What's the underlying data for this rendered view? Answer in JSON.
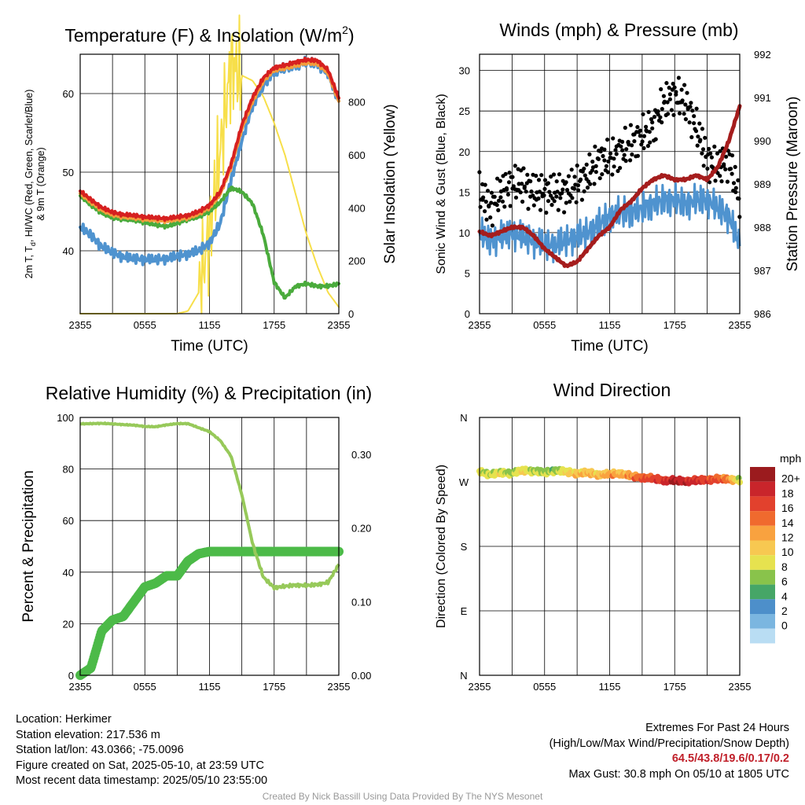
{
  "colors": {
    "air_temp": "#d62020",
    "dewpoint": "#4aab3c",
    "heat_index": "#d62020",
    "temp_9m": "#f39c3c",
    "windchill_line": "#4f93cf",
    "solar": "#f7df4a",
    "wind_speed": "#4f93cf",
    "gust": "#000000",
    "pressure": "#a51d1d",
    "rh": "#97c95a",
    "precip": "#4cba48"
  },
  "chart_data": [
    {
      "type": "line",
      "title": "Temperature (F) & Insolation (W/m",
      "title_sup": "2",
      "title_end": ")",
      "xlabel": "Time (UTC)",
      "ylabel_line1": "2m T, T",
      "ylabel_sub": "d",
      "ylabel_line1_end": ", HI/WC (Red, Green, Scarlet/Blue)",
      "ylabel_line2": "& 9m T (Orange)",
      "y2label": "Solar Insolation (Yellow)",
      "xticks": [
        "2355",
        "0555",
        "1155",
        "1755",
        "2355"
      ],
      "x": [
        0,
        1,
        2,
        3,
        4,
        5,
        6,
        7,
        8,
        9,
        10,
        11,
        12,
        13,
        14,
        15,
        16,
        17,
        18,
        19,
        20,
        21,
        22,
        23,
        24
      ],
      "ylim": [
        32,
        65
      ],
      "yticks": [
        40,
        50,
        60
      ],
      "y2lim": [
        0,
        980
      ],
      "y2ticks": [
        0,
        200,
        400,
        600,
        800
      ],
      "series": [
        {
          "name": "2m T (Red)",
          "axis": "y",
          "color": "#d62020",
          "values": [
            47.6,
            46.5,
            45.5,
            44.9,
            44.6,
            44.5,
            44.3,
            44.2,
            44.1,
            44.3,
            44.5,
            45.0,
            45.8,
            47.5,
            51.0,
            56.0,
            59.5,
            62.0,
            63.3,
            63.6,
            64.0,
            64.3,
            64.2,
            63.0,
            59.4
          ]
        },
        {
          "name": "9m T (Orange)",
          "axis": "y",
          "color": "#f39c3c",
          "values": [
            47.3,
            46.2,
            45.2,
            44.6,
            44.3,
            44.2,
            44.0,
            43.9,
            43.8,
            44.0,
            44.2,
            44.7,
            45.5,
            47.2,
            50.6,
            55.5,
            59.0,
            61.6,
            63.0,
            63.2,
            63.6,
            63.9,
            63.8,
            62.6,
            59.0
          ]
        },
        {
          "name": "Dewpoint (Green)",
          "axis": "y",
          "color": "#4aab3c",
          "values": [
            47.0,
            45.8,
            44.8,
            44.2,
            44.0,
            43.9,
            43.6,
            43.3,
            43.1,
            43.5,
            44.0,
            44.3,
            45.0,
            46.2,
            48.0,
            47.5,
            46.0,
            42.0,
            36.0,
            34.0,
            35.5,
            35.8,
            35.5,
            35.5,
            35.8
          ]
        },
        {
          "name": "HI/WC (Blue)",
          "axis": "y",
          "color": "#4f93cf",
          "values": [
            43.0,
            42.0,
            40.5,
            39.8,
            39.2,
            39.0,
            38.9,
            38.9,
            39.0,
            39.3,
            39.6,
            40.0,
            41.0,
            43.5,
            49.0,
            54.0,
            58.5,
            61.0,
            62.8,
            63.2,
            63.6,
            64.0,
            63.8,
            62.5,
            59.0
          ]
        },
        {
          "name": "Solar Insolation (Yellow)",
          "axis": "y2",
          "color": "#f7df4a",
          "values": [
            0,
            0,
            0,
            0,
            0,
            0,
            0,
            0,
            0,
            0,
            10,
            80,
            300,
            620,
            940,
            900,
            880,
            820,
            720,
            600,
            450,
            300,
            180,
            80,
            25
          ]
        }
      ]
    },
    {
      "type": "line",
      "title": "Winds (mph) & Pressure (mb)",
      "xlabel": "Time (UTC)",
      "ylabel": "Sonic Wind & Gust (Blue, Black)",
      "y2label": "Station Pressure (Maroon)",
      "xticks": [
        "2355",
        "0555",
        "1155",
        "1755",
        "2355"
      ],
      "x": [
        0,
        1,
        2,
        3,
        4,
        5,
        6,
        7,
        8,
        9,
        10,
        11,
        12,
        13,
        14,
        15,
        16,
        17,
        18,
        19,
        20,
        21,
        22,
        23,
        24
      ],
      "ylim": [
        0,
        32
      ],
      "yticks": [
        0,
        5,
        10,
        15,
        20,
        25,
        30
      ],
      "y2lim": [
        986,
        992
      ],
      "y2ticks": [
        986,
        987,
        988,
        989,
        990,
        991,
        992
      ],
      "series": [
        {
          "name": "Sonic Wind (Blue)",
          "axis": "y",
          "color": "#4f93cf",
          "values": [
            10,
            9,
            9.5,
            10,
            9.5,
            9,
            8.5,
            8.5,
            9,
            9.5,
            10,
            11,
            12,
            12.5,
            12.5,
            13,
            13.5,
            14,
            14,
            13.5,
            14,
            14,
            13,
            12,
            8.5
          ]
        },
        {
          "name": "Gust (Black)",
          "axis": "y",
          "color": "#000000",
          "values": [
            15,
            13,
            15,
            16,
            16,
            15,
            15,
            15,
            15,
            16,
            17,
            19,
            19,
            20,
            21,
            22,
            23,
            26,
            27,
            26,
            23,
            19,
            18,
            19,
            14
          ]
        },
        {
          "name": "Station Pressure (Maroon)",
          "axis": "y2",
          "color": "#a51d1d",
          "values": [
            987.9,
            987.8,
            987.9,
            988.0,
            988.0,
            987.8,
            987.5,
            987.3,
            987.1,
            987.2,
            987.5,
            987.8,
            988.0,
            988.4,
            988.6,
            988.9,
            989.1,
            989.2,
            989.1,
            989.1,
            989.2,
            989.1,
            989.4,
            990.0,
            990.8
          ]
        }
      ]
    },
    {
      "type": "line",
      "title": "Relative Humidity (%) & Precipitation (in)",
      "ylabel": "Percent & Precipitation",
      "xticks": [
        "2355",
        "0555",
        "1155",
        "1755",
        "2355"
      ],
      "x": [
        0,
        1,
        2,
        3,
        4,
        5,
        6,
        7,
        8,
        9,
        10,
        11,
        12,
        13,
        14,
        15,
        16,
        17,
        18,
        19,
        20,
        21,
        22,
        23,
        24
      ],
      "ylim": [
        0,
        100
      ],
      "yticks": [
        0,
        20,
        40,
        60,
        80,
        100
      ],
      "y2lim": [
        0,
        0.35
      ],
      "y2ticks": [
        "0.00",
        "0.10",
        "0.20",
        "0.30"
      ],
      "series": [
        {
          "name": "Relative Humidity (%)",
          "axis": "y",
          "color": "#97c95a",
          "values": [
            97.5,
            97.6,
            97.7,
            97.5,
            97.2,
            97.0,
            96.5,
            96.4,
            97.1,
            97.6,
            97.6,
            96.0,
            94.5,
            91.0,
            85.0,
            70.0,
            51.0,
            38.0,
            34.0,
            34.5,
            35.0,
            34.8,
            35.2,
            36.0,
            43.0
          ]
        },
        {
          "name": "Precipitation (in)",
          "axis": "y2",
          "color": "#4cba48",
          "values": [
            0.0,
            0.01,
            0.06,
            0.075,
            0.08,
            0.1,
            0.12,
            0.125,
            0.135,
            0.135,
            0.155,
            0.165,
            0.168,
            0.168,
            0.168,
            0.168,
            0.168,
            0.168,
            0.168,
            0.168,
            0.168,
            0.168,
            0.168,
            0.168,
            0.168
          ]
        }
      ]
    },
    {
      "type": "scatter",
      "title": "Wind Direction",
      "ylabel": "Direction (Colored By Speed)",
      "xticks": [
        "2355",
        "0555",
        "1155",
        "1755",
        "2355"
      ],
      "yticks": [
        "N",
        "E",
        "S",
        "W",
        "N"
      ],
      "ylim": [
        0,
        360
      ],
      "x": [
        0,
        1,
        2,
        3,
        4,
        5,
        6,
        7,
        8,
        9,
        10,
        11,
        12,
        13,
        14,
        15,
        16,
        17,
        18,
        19,
        20,
        21,
        22,
        23,
        24
      ],
      "direction": [
        285,
        280,
        283,
        282,
        286,
        285,
        283,
        286,
        284,
        282,
        283,
        280,
        281,
        282,
        278,
        276,
        275,
        272,
        272,
        271,
        272,
        273,
        274,
        274,
        272
      ],
      "speed": [
        9,
        8,
        9,
        7,
        10,
        8,
        8,
        7,
        10,
        11,
        12,
        11,
        13,
        12,
        14,
        16,
        17,
        18,
        20,
        19,
        18,
        17,
        16,
        14,
        8
      ],
      "colorbar": {
        "label": "mph",
        "ticks": [
          "20+",
          "18",
          "16",
          "14",
          "12",
          "10",
          "8",
          "6",
          "4",
          "2",
          "0"
        ],
        "colors": [
          "#9b1b1e",
          "#c9252b",
          "#e2412d",
          "#f06a2e",
          "#f9a23f",
          "#f7c851",
          "#e6e24f",
          "#89c34b",
          "#46a667",
          "#4d8fca",
          "#7bb6e0",
          "#b9ddf3"
        ]
      }
    }
  ],
  "footer": {
    "location": "Location: Herkimer",
    "elevation": "Station elevation: 217.536 m",
    "latlon": "Station lat/lon: 43.0366; -75.0096",
    "created": "Figure created on Sat, 2025-05-10, at 23:59 UTC",
    "recent": "Most recent data timestamp: 2025/05/10 23:55:00",
    "extremes_title": "Extremes For Past 24 Hours",
    "extremes_legend": "(High/Low/Max Wind/Precipitation/Snow Depth)",
    "extremes_values": "64.5/43.8/19.6/0.17/0.2",
    "max_gust": "Max Gust: 30.8 mph On 05/10 at 1805 UTC",
    "credit": "Created By Nick Bassill Using Data Provided By The NYS Mesonet"
  }
}
